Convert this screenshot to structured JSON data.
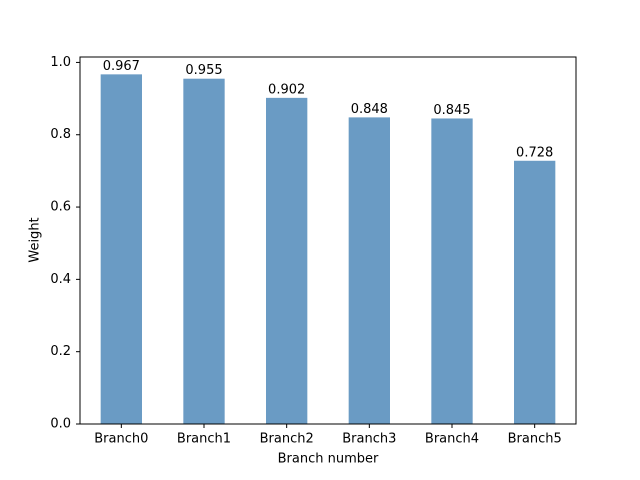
{
  "chart_data": {
    "type": "bar",
    "x_label": "Branch number",
    "y_label": "Weight",
    "categories": [
      "Branch0",
      "Branch1",
      "Branch2",
      "Branch3",
      "Branch4",
      "Branch5"
    ],
    "values": [
      0.967,
      0.955,
      0.902,
      0.848,
      0.845,
      0.728
    ],
    "color": "#6a9bc4",
    "ylim": [
      0,
      1.015
    ],
    "yticks": [
      {
        "value": 0,
        "label": "0.0"
      },
      0.2,
      0.4,
      0.6,
      0.8,
      {
        "value": 1,
        "label": "1.0"
      }
    ],
    "grid": false
  }
}
